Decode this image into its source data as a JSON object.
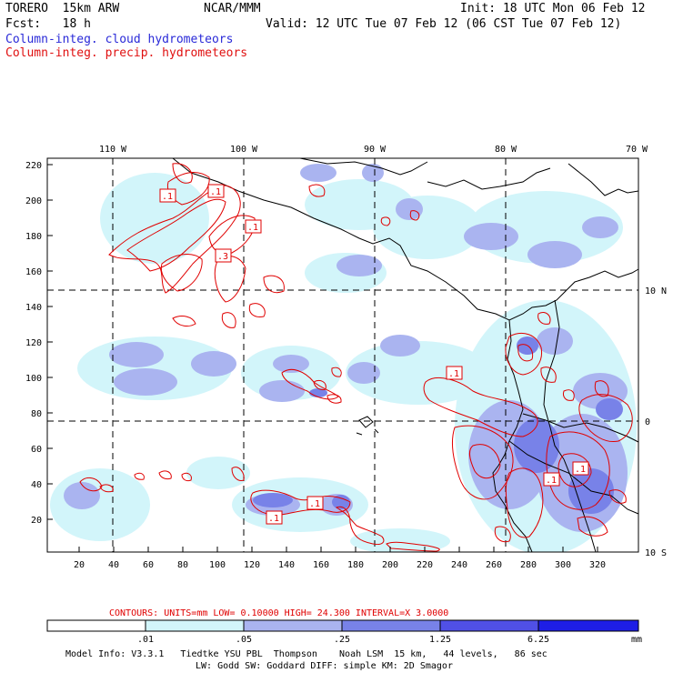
{
  "header": {
    "model": "TORERO  15km ARW",
    "org": "NCAR/MMM",
    "init": "Init: 18 UTC Mon 06 Feb 12",
    "fcst": "Fcst:   18 h",
    "valid": "Valid: 12 UTC Tue 07 Feb 12 (06 CST Tue 07 Feb 12)",
    "field_cloud": "Column-integ. cloud hydrometeors",
    "field_precip": "Column-integ. precip. hydrometeors"
  },
  "map": {
    "lon_labels": [
      "110 W",
      "100 W",
      "90 W",
      "80 W",
      "70 W"
    ],
    "lat_labels": [
      "10 N",
      "0",
      "10 S"
    ],
    "y_ticks": [
      "220",
      "200",
      "180",
      "160",
      "140",
      "120",
      "100",
      "80",
      "60",
      "40",
      "20"
    ],
    "x_ticks": [
      "20",
      "40",
      "60",
      "80",
      "100",
      "120",
      "140",
      "160",
      "180",
      "200",
      "220",
      "240",
      "260",
      "280",
      "300",
      "320"
    ],
    "contour_labels": [
      ".1",
      ".1",
      ".1",
      ".3",
      ".1",
      ".1",
      ".1",
      ".1",
      ".1"
    ]
  },
  "contour_info": "CONTOURS:  UNITS=mm  LOW= 0.10000     HIGH=  24.300     INTERVAL=X  3.0000",
  "colorbar": {
    "labels": [
      ".01",
      ".05",
      ".25",
      "1.25",
      "6.25"
    ],
    "units": "mm",
    "colors": [
      "#ffffff",
      "#d2f5fa",
      "#aab4f0",
      "#7882e8",
      "#5050e6",
      "#1e1ee6"
    ]
  },
  "footer": {
    "line1": "Model Info: V3.3.1   Tiedtke YSU PBL  Thompson    Noah LSM  15 km,   44 levels,   86 sec",
    "line2": "LW: Godd SW: Goddard DIFF: simple KM: 2D Smagor"
  }
}
